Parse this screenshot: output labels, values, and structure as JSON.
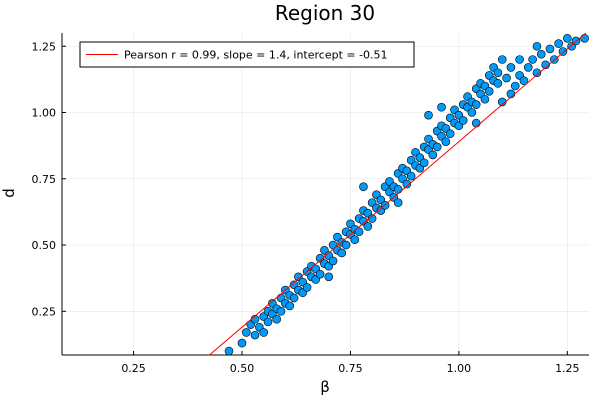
{
  "chart_data": {
    "type": "scatter",
    "title": "Region 30",
    "xlabel": "β",
    "ylabel": "d",
    "xlim": [
      0.085,
      1.3
    ],
    "ylim": [
      0.085,
      1.3
    ],
    "xticks": [
      0.25,
      0.5,
      0.75,
      1.0,
      1.25
    ],
    "xtick_labels": [
      "0.25",
      "0.50",
      "0.75",
      "1.00",
      "1.25"
    ],
    "yticks": [
      0.25,
      0.5,
      0.75,
      1.0,
      1.25
    ],
    "ytick_labels": [
      "0.25",
      "0.50",
      "0.75",
      "1.00",
      "1.25"
    ],
    "grid": true,
    "legend_position": "top-left",
    "legend": [
      {
        "label": "Pearson r = 0.99, slope = 1.4, intercept = -0.51",
        "color": "#ff0000",
        "kind": "line"
      }
    ],
    "fit_line": {
      "slope": 1.4,
      "intercept": -0.51,
      "color": "#ff0000"
    },
    "point_color": "#009af9",
    "points": [
      [
        0.47,
        0.1
      ],
      [
        0.5,
        0.13
      ],
      [
        0.51,
        0.17
      ],
      [
        0.52,
        0.2
      ],
      [
        0.53,
        0.16
      ],
      [
        0.53,
        0.22
      ],
      [
        0.54,
        0.19
      ],
      [
        0.55,
        0.23
      ],
      [
        0.55,
        0.17
      ],
      [
        0.56,
        0.25
      ],
      [
        0.56,
        0.21
      ],
      [
        0.57,
        0.24
      ],
      [
        0.57,
        0.28
      ],
      [
        0.58,
        0.22
      ],
      [
        0.58,
        0.26
      ],
      [
        0.59,
        0.3
      ],
      [
        0.59,
        0.25
      ],
      [
        0.6,
        0.28
      ],
      [
        0.6,
        0.33
      ],
      [
        0.61,
        0.27
      ],
      [
        0.61,
        0.31
      ],
      [
        0.62,
        0.35
      ],
      [
        0.62,
        0.3
      ],
      [
        0.63,
        0.33
      ],
      [
        0.63,
        0.38
      ],
      [
        0.64,
        0.32
      ],
      [
        0.64,
        0.36
      ],
      [
        0.65,
        0.4
      ],
      [
        0.65,
        0.34
      ],
      [
        0.66,
        0.38
      ],
      [
        0.66,
        0.42
      ],
      [
        0.67,
        0.37
      ],
      [
        0.67,
        0.41
      ],
      [
        0.68,
        0.45
      ],
      [
        0.68,
        0.39
      ],
      [
        0.69,
        0.43
      ],
      [
        0.69,
        0.48
      ],
      [
        0.7,
        0.42
      ],
      [
        0.7,
        0.46
      ],
      [
        0.71,
        0.5
      ],
      [
        0.71,
        0.44
      ],
      [
        0.72,
        0.48
      ],
      [
        0.72,
        0.53
      ],
      [
        0.73,
        0.47
      ],
      [
        0.73,
        0.51
      ],
      [
        0.74,
        0.55
      ],
      [
        0.74,
        0.5
      ],
      [
        0.75,
        0.54
      ],
      [
        0.75,
        0.58
      ],
      [
        0.76,
        0.52
      ],
      [
        0.76,
        0.56
      ],
      [
        0.77,
        0.6
      ],
      [
        0.77,
        0.55
      ],
      [
        0.78,
        0.59
      ],
      [
        0.78,
        0.63
      ],
      [
        0.79,
        0.57
      ],
      [
        0.79,
        0.62
      ],
      [
        0.8,
        0.66
      ],
      [
        0.8,
        0.6
      ],
      [
        0.81,
        0.64
      ],
      [
        0.81,
        0.69
      ],
      [
        0.82,
        0.63
      ],
      [
        0.82,
        0.67
      ],
      [
        0.83,
        0.72
      ],
      [
        0.83,
        0.65
      ],
      [
        0.84,
        0.7
      ],
      [
        0.84,
        0.74
      ],
      [
        0.85,
        0.68
      ],
      [
        0.85,
        0.72
      ],
      [
        0.86,
        0.77
      ],
      [
        0.86,
        0.71
      ],
      [
        0.87,
        0.75
      ],
      [
        0.87,
        0.79
      ],
      [
        0.88,
        0.73
      ],
      [
        0.88,
        0.78
      ],
      [
        0.89,
        0.82
      ],
      [
        0.89,
        0.76
      ],
      [
        0.9,
        0.8
      ],
      [
        0.9,
        0.85
      ],
      [
        0.91,
        0.79
      ],
      [
        0.91,
        0.83
      ],
      [
        0.92,
        0.87
      ],
      [
        0.92,
        0.81
      ],
      [
        0.93,
        0.86
      ],
      [
        0.93,
        0.9
      ],
      [
        0.94,
        0.84
      ],
      [
        0.94,
        0.88
      ],
      [
        0.95,
        0.93
      ],
      [
        0.95,
        0.87
      ],
      [
        0.96,
        0.91
      ],
      [
        0.96,
        0.95
      ],
      [
        0.97,
        0.89
      ],
      [
        0.97,
        0.94
      ],
      [
        0.98,
        0.98
      ],
      [
        0.98,
        0.92
      ],
      [
        0.99,
        0.96
      ],
      [
        0.99,
        1.01
      ],
      [
        1.0,
        0.95
      ],
      [
        1.0,
        0.99
      ],
      [
        1.01,
        1.03
      ],
      [
        1.01,
        0.97
      ],
      [
        1.02,
        1.02
      ],
      [
        1.02,
        1.06
      ],
      [
        1.03,
        1.0
      ],
      [
        1.03,
        1.04
      ],
      [
        1.04,
        1.09
      ],
      [
        1.04,
        1.03
      ],
      [
        1.05,
        1.07
      ],
      [
        1.05,
        1.11
      ],
      [
        1.06,
        1.05
      ],
      [
        1.06,
        1.1
      ],
      [
        1.07,
        1.14
      ],
      [
        1.07,
        1.08
      ],
      [
        1.08,
        1.12
      ],
      [
        1.08,
        1.17
      ],
      [
        1.09,
        1.11
      ],
      [
        1.09,
        1.15
      ],
      [
        1.1,
        1.04
      ],
      [
        1.11,
        1.13
      ],
      [
        1.12,
        1.07
      ],
      [
        1.12,
        1.17
      ],
      [
        1.13,
        1.1
      ],
      [
        1.14,
        1.14
      ],
      [
        1.14,
        1.2
      ],
      [
        1.15,
        1.12
      ],
      [
        1.16,
        1.17
      ],
      [
        1.17,
        1.2
      ],
      [
        1.18,
        1.15
      ],
      [
        1.19,
        1.22
      ],
      [
        1.2,
        1.18
      ],
      [
        1.21,
        1.24
      ],
      [
        1.22,
        1.2
      ],
      [
        1.23,
        1.26
      ],
      [
        1.24,
        1.23
      ],
      [
        1.25,
        1.28
      ],
      [
        1.26,
        1.25
      ],
      [
        1.27,
        1.27
      ],
      [
        1.29,
        1.28
      ],
      [
        0.86,
        0.66
      ],
      [
        0.93,
        0.99
      ],
      [
        1.1,
        1.2
      ],
      [
        0.78,
        0.72
      ],
      [
        0.7,
        0.38
      ],
      [
        0.96,
        1.02
      ],
      [
        1.04,
        0.96
      ],
      [
        1.18,
        1.25
      ]
    ]
  }
}
